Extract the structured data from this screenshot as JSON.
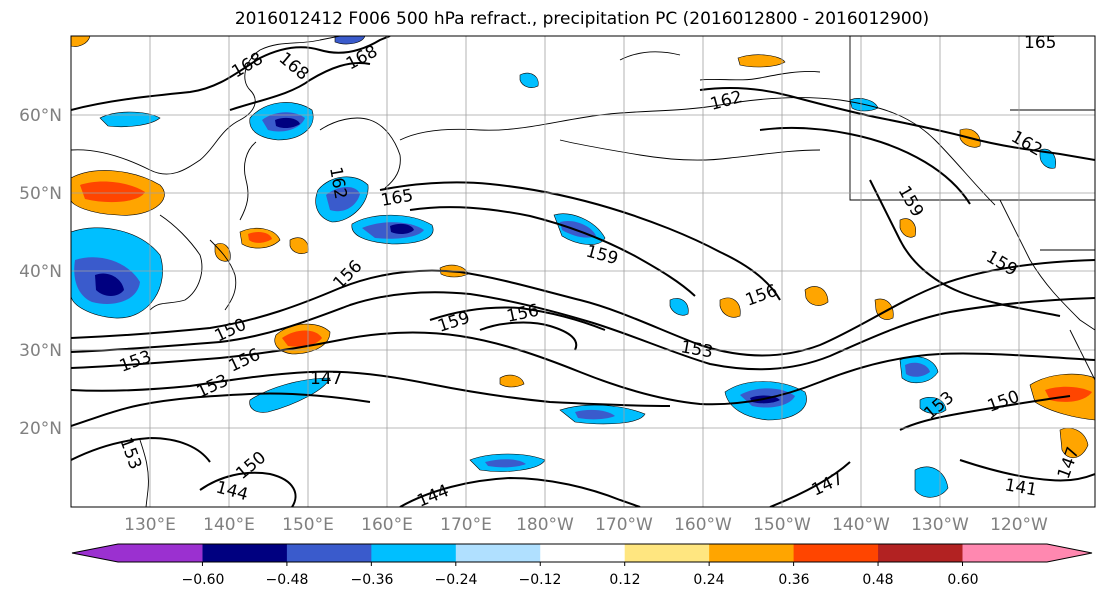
{
  "title": "2016012412 F006 500 hPa refract., precipitation PC (2016012800 - 2016012900)",
  "map": {
    "lon_ticks": [
      "130°E",
      "140°E",
      "150°E",
      "160°E",
      "170°E",
      "180°W",
      "170°W",
      "160°W",
      "150°W",
      "140°W",
      "130°W",
      "120°W"
    ],
    "lat_ticks": [
      "20°N",
      "30°N",
      "40°N",
      "50°N",
      "60°N"
    ],
    "grid": true,
    "coastlines": true,
    "contour_labels": [
      "168",
      "168",
      "168",
      "165",
      "165",
      "162",
      "162",
      "162",
      "159",
      "159",
      "159",
      "159",
      "156",
      "156",
      "156",
      "156",
      "153",
      "153",
      "153",
      "153",
      "153",
      "150",
      "150",
      "150",
      "147",
      "147",
      "147",
      "144",
      "144",
      "141"
    ]
  },
  "colorbar": {
    "labels": [
      "−0.60",
      "−0.48",
      "−0.36",
      "−0.24",
      "−0.12",
      "0.12",
      "0.24",
      "0.36",
      "0.48",
      "0.60"
    ],
    "colors": [
      "#9b30d0",
      "#000080",
      "#3a5bcc",
      "#00bfff",
      "#b0e0ff",
      "#ffffff",
      "#ffe680",
      "#ffa500",
      "#ff4500",
      "#b22222",
      "#ff88b0"
    ]
  }
}
